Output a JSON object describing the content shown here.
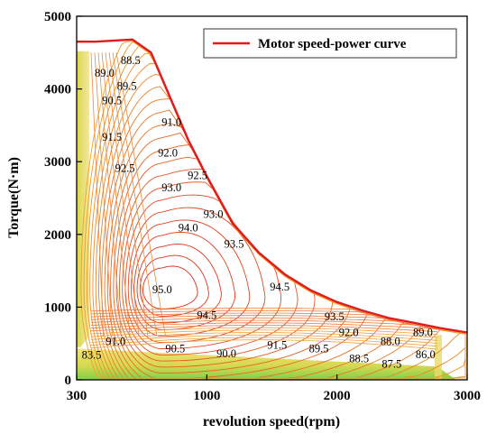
{
  "chart_data": {
    "type": "contour",
    "xlabel": "revolution speed(rpm)",
    "ylabel": "Torque(N·m)",
    "xlim": [
      300,
      3000
    ],
    "ylim": [
      0,
      5000
    ],
    "x_ticks": [
      300,
      1000,
      2000,
      3000
    ],
    "y_ticks": [
      0,
      1000,
      2000,
      3000,
      4000,
      5000
    ],
    "legend": {
      "label": "Motor speed-power curve",
      "color": "#e31a1c",
      "placement": "top-right"
    },
    "series": [
      {
        "name": "Motor speed-power curve",
        "x": [
          300,
          400,
          600,
          700,
          800,
          900,
          1000,
          1200,
          1400,
          1600,
          1800,
          2000,
          2200,
          2400,
          2600,
          2800,
          3000
        ],
        "y": [
          4650,
          4650,
          4680,
          4500,
          3900,
          3300,
          2800,
          2150,
          1750,
          1450,
          1230,
          1070,
          950,
          850,
          780,
          710,
          650
        ]
      }
    ],
    "efficiency_labels": [
      {
        "text": "88.5",
        "x": 590,
        "y": 4340
      },
      {
        "text": "89.0",
        "x": 450,
        "y": 4170
      },
      {
        "text": "89.5",
        "x": 570,
        "y": 3990
      },
      {
        "text": "90.5",
        "x": 490,
        "y": 3790
      },
      {
        "text": "91.0",
        "x": 810,
        "y": 3490
      },
      {
        "text": "91.5",
        "x": 490,
        "y": 3290
      },
      {
        "text": "92.0",
        "x": 790,
        "y": 3070
      },
      {
        "text": "92.5",
        "x": 560,
        "y": 2860
      },
      {
        "text": "92.5",
        "x": 950,
        "y": 2760
      },
      {
        "text": "93.0",
        "x": 810,
        "y": 2590
      },
      {
        "text": "93.0",
        "x": 1050,
        "y": 2230
      },
      {
        "text": "94.0",
        "x": 900,
        "y": 2040
      },
      {
        "text": "93.5",
        "x": 1210,
        "y": 1820
      },
      {
        "text": "95.0",
        "x": 760,
        "y": 1190
      },
      {
        "text": "94.5",
        "x": 1560,
        "y": 1230
      },
      {
        "text": "94.5",
        "x": 1000,
        "y": 840
      },
      {
        "text": "93.5",
        "x": 1980,
        "y": 820
      },
      {
        "text": "92.0",
        "x": 2090,
        "y": 600
      },
      {
        "text": "89.0",
        "x": 2660,
        "y": 600
      },
      {
        "text": "91.0",
        "x": 510,
        "y": 480
      },
      {
        "text": "90.5",
        "x": 830,
        "y": 380
      },
      {
        "text": "91.5",
        "x": 1540,
        "y": 430
      },
      {
        "text": "89.5",
        "x": 1860,
        "y": 380
      },
      {
        "text": "88.0",
        "x": 2410,
        "y": 480
      },
      {
        "text": "90.0",
        "x": 1150,
        "y": 310
      },
      {
        "text": "83.5",
        "x": 380,
        "y": 290
      },
      {
        "text": "86.0",
        "x": 2680,
        "y": 300
      },
      {
        "text": "88.5",
        "x": 2170,
        "y": 240
      },
      {
        "text": "87.5",
        "x": 2420,
        "y": 170
      }
    ]
  }
}
